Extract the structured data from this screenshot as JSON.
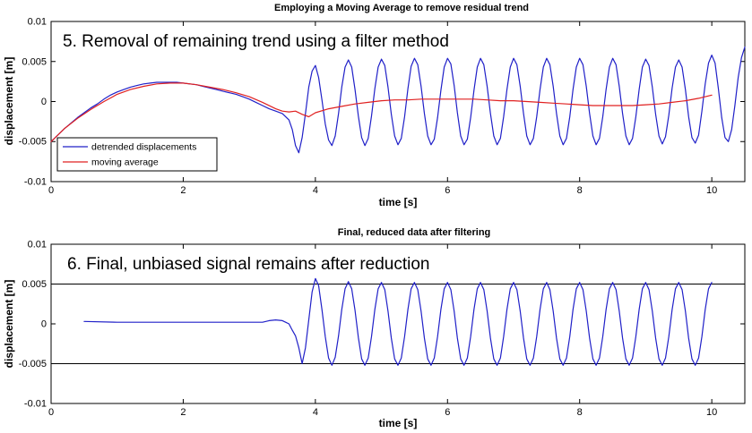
{
  "chart_data": [
    {
      "type": "line",
      "title": "Employing a Moving Average to remove residual trend",
      "annotation": "5. Removal of remaining trend using a filter method",
      "xlabel": "time [s]",
      "ylabel": "displacement [m]",
      "xlim": [
        0,
        10.5
      ],
      "ylim": [
        -0.01,
        0.01
      ],
      "xticks": [
        "0",
        "2",
        "4",
        "6",
        "8",
        "10"
      ],
      "yticks": [
        "-0.01",
        "-0.005",
        "0",
        "0.005",
        "0.01"
      ],
      "grid": false,
      "legend_position": "bottom-left",
      "series": [
        {
          "name": "detrended displacements",
          "color": "#2020c8",
          "x": [
            0,
            0.1,
            0.2,
            0.3,
            0.4,
            0.5,
            0.6,
            0.7,
            0.8,
            0.9,
            1.0,
            1.1,
            1.2,
            1.3,
            1.4,
            1.5,
            1.6,
            1.7,
            1.8,
            1.9,
            2.0,
            2.1,
            2.2,
            2.3,
            2.4,
            2.5,
            2.6,
            2.7,
            2.8,
            2.9,
            3.0,
            3.1,
            3.2,
            3.3,
            3.4,
            3.5,
            3.6,
            3.65,
            3.7,
            3.75,
            3.8,
            3.85,
            3.9,
            3.95,
            4.0,
            4.05,
            4.1,
            4.15,
            4.2,
            4.25,
            4.3,
            4.35,
            4.4,
            4.45,
            4.5,
            4.55,
            4.6,
            4.65,
            4.7,
            4.75,
            4.8,
            4.85,
            4.9,
            4.95,
            5.0,
            5.05,
            5.1,
            5.15,
            5.2,
            5.25,
            5.3,
            5.35,
            5.4,
            5.45,
            5.5,
            5.55,
            5.6,
            5.65,
            5.7,
            5.75,
            5.8,
            5.85,
            5.9,
            5.95,
            6.0,
            6.05,
            6.1,
            6.15,
            6.2,
            6.25,
            6.3,
            6.35,
            6.4,
            6.45,
            6.5,
            6.55,
            6.6,
            6.65,
            6.7,
            6.75,
            6.8,
            6.85,
            6.9,
            6.95,
            7.0,
            7.05,
            7.1,
            7.15,
            7.2,
            7.25,
            7.3,
            7.35,
            7.4,
            7.45,
            7.5,
            7.55,
            7.6,
            7.65,
            7.7,
            7.75,
            7.8,
            7.85,
            7.9,
            7.95,
            8.0,
            8.05,
            8.1,
            8.15,
            8.2,
            8.25,
            8.3,
            8.35,
            8.4,
            8.45,
            8.5,
            8.55,
            8.6,
            8.65,
            8.7,
            8.75,
            8.8,
            8.85,
            8.9,
            8.95,
            9.0,
            9.05,
            9.1,
            9.15,
            9.2,
            9.25,
            9.3,
            9.35,
            9.4,
            9.45,
            9.5,
            9.55,
            9.6,
            9.65,
            9.7,
            9.75,
            9.8,
            9.85,
            9.9,
            9.95,
            10.0,
            10.05,
            10.1,
            10.15,
            10.2,
            10.25,
            10.3,
            10.35,
            10.4,
            10.45,
            10.5
          ],
          "y": [
            -0.005,
            -0.0042,
            -0.0034,
            -0.0027,
            -0.002,
            -0.0014,
            -0.0008,
            -0.0003,
            0.0003,
            0.0008,
            0.0012,
            0.0015,
            0.0018,
            0.002,
            0.0022,
            0.0023,
            0.0024,
            0.0024,
            0.0024,
            0.0024,
            0.0023,
            0.0022,
            0.0021,
            0.0019,
            0.0017,
            0.0015,
            0.0013,
            0.0011,
            0.0009,
            0.0006,
            0.0003,
            -0.0001,
            -0.0005,
            -0.0009,
            -0.0012,
            -0.0015,
            -0.0023,
            -0.0035,
            -0.0055,
            -0.0064,
            -0.0045,
            -0.0015,
            0.0018,
            0.0038,
            0.0045,
            0.003,
            0.0002,
            -0.0028,
            -0.0048,
            -0.0055,
            -0.0043,
            -0.0015,
            0.0018,
            0.0043,
            0.0052,
            0.0043,
            0.0015,
            -0.0018,
            -0.0045,
            -0.0055,
            -0.0046,
            -0.0018,
            0.0016,
            0.0043,
            0.0053,
            0.0045,
            0.0018,
            -0.0016,
            -0.0043,
            -0.0054,
            -0.0046,
            -0.0019,
            0.0016,
            0.0044,
            0.0054,
            0.0046,
            0.0019,
            -0.0015,
            -0.0043,
            -0.0054,
            -0.0047,
            -0.002,
            0.0014,
            0.0043,
            0.0054,
            0.0047,
            0.002,
            -0.0014,
            -0.0043,
            -0.0054,
            -0.0047,
            -0.002,
            0.0014,
            0.0043,
            0.0054,
            0.0046,
            0.0019,
            -0.0015,
            -0.0043,
            -0.0054,
            -0.0046,
            -0.0019,
            0.0015,
            0.0043,
            0.0054,
            0.0046,
            0.0019,
            -0.0015,
            -0.0043,
            -0.0054,
            -0.0046,
            -0.0019,
            0.0015,
            0.0043,
            0.0054,
            0.0046,
            0.0019,
            -0.0015,
            -0.0043,
            -0.0054,
            -0.0046,
            -0.0019,
            0.0015,
            0.0043,
            0.0054,
            0.0046,
            0.0019,
            -0.0015,
            -0.0043,
            -0.0054,
            -0.0046,
            -0.0019,
            0.0015,
            0.0043,
            0.0054,
            0.0046,
            0.0019,
            -0.0015,
            -0.0043,
            -0.0054,
            -0.0046,
            -0.0019,
            0.0015,
            0.0043,
            0.0053,
            0.0045,
            0.0018,
            -0.0016,
            -0.0043,
            -0.0053,
            -0.0044,
            -0.0017,
            0.0017,
            0.0043,
            0.0052,
            0.0043,
            0.0015,
            -0.0019,
            -0.0045,
            -0.0052,
            -0.0042,
            -0.0012,
            0.0022,
            0.0048,
            0.0058,
            0.0048,
            0.0016,
            -0.002,
            -0.0045,
            -0.005,
            -0.0035,
            -0.0005,
            0.003,
            0.0055,
            0.0068
          ]
        },
        {
          "name": "moving average",
          "color": "#e02020",
          "x": [
            0,
            0.2,
            0.4,
            0.6,
            0.8,
            1.0,
            1.2,
            1.4,
            1.6,
            1.8,
            2.0,
            2.2,
            2.4,
            2.6,
            2.8,
            3.0,
            3.2,
            3.4,
            3.5,
            3.6,
            3.7,
            3.8,
            3.9,
            4.0,
            4.2,
            4.4,
            4.6,
            4.8,
            5.0,
            5.2,
            5.4,
            5.6,
            5.8,
            6.0,
            6.2,
            6.4,
            6.6,
            6.8,
            7.0,
            7.2,
            7.4,
            7.6,
            7.8,
            8.0,
            8.2,
            8.4,
            8.6,
            8.8,
            9.0,
            9.2,
            9.4,
            9.6,
            9.8,
            10.0
          ],
          "y": [
            -0.005,
            -0.0034,
            -0.0021,
            -0.001,
            0,
            0.0009,
            0.0015,
            0.0019,
            0.0022,
            0.0023,
            0.0023,
            0.0021,
            0.0018,
            0.0015,
            0.0011,
            0.0006,
            -0.0001,
            -0.0009,
            -0.0012,
            -0.0013,
            -0.0012,
            -0.0016,
            -0.0019,
            -0.0014,
            -0.0009,
            -0.0006,
            -0.0003,
            -0.0001,
            0.0001,
            0.0002,
            0.0002,
            0.0003,
            0.0003,
            0.0003,
            0.0003,
            0.0003,
            0.0002,
            0.0001,
            0.0001,
            0,
            -0.0001,
            -0.0002,
            -0.0003,
            -0.0004,
            -0.0005,
            -0.0005,
            -0.0005,
            -0.0005,
            -0.0004,
            -0.0003,
            -0.0001,
            0.0001,
            0.0004,
            0.0008
          ]
        }
      ]
    },
    {
      "type": "line",
      "title": "Final, reduced data after filtering",
      "annotation": "6. Final, unbiased signal remains after reduction",
      "xlabel": "time [s]",
      "ylabel": "displacement [m]",
      "xlim": [
        0,
        10.5
      ],
      "ylim": [
        -0.01,
        0.01
      ],
      "xticks": [
        "0",
        "2",
        "4",
        "6",
        "8",
        "10"
      ],
      "yticks": [
        "-0.01",
        "-0.005",
        "0",
        "0.005",
        "0.01"
      ],
      "grid": false,
      "reference_lines_y": [
        0.005,
        -0.005
      ],
      "series": [
        {
          "color": "#2020c8",
          "x": [
            0.5,
            1.0,
            1.5,
            2.0,
            2.5,
            3.0,
            3.2,
            3.3,
            3.4,
            3.5,
            3.55,
            3.6,
            3.65,
            3.7,
            3.75,
            3.8,
            3.85,
            3.9,
            3.95,
            4.0,
            4.05,
            4.1,
            4.15,
            4.2,
            4.25,
            4.3,
            4.35,
            4.4,
            4.45,
            4.5,
            4.55,
            4.6,
            4.65,
            4.7,
            4.75,
            4.8,
            4.85,
            4.9,
            4.95,
            5.0,
            5.05,
            5.1,
            5.15,
            5.2,
            5.25,
            5.3,
            5.35,
            5.4,
            5.45,
            5.5,
            5.55,
            5.6,
            5.65,
            5.7,
            5.75,
            5.8,
            5.85,
            5.9,
            5.95,
            6.0,
            6.05,
            6.1,
            6.15,
            6.2,
            6.25,
            6.3,
            6.35,
            6.4,
            6.45,
            6.5,
            6.55,
            6.6,
            6.65,
            6.7,
            6.75,
            6.8,
            6.85,
            6.9,
            6.95,
            7.0,
            7.05,
            7.1,
            7.15,
            7.2,
            7.25,
            7.3,
            7.35,
            7.4,
            7.45,
            7.5,
            7.55,
            7.6,
            7.65,
            7.7,
            7.75,
            7.8,
            7.85,
            7.9,
            7.95,
            8.0,
            8.05,
            8.1,
            8.15,
            8.2,
            8.25,
            8.3,
            8.35,
            8.4,
            8.45,
            8.5,
            8.55,
            8.6,
            8.65,
            8.7,
            8.75,
            8.8,
            8.85,
            8.9,
            8.95,
            9.0,
            9.05,
            9.1,
            9.15,
            9.2,
            9.25,
            9.3,
            9.35,
            9.4,
            9.45,
            9.5,
            9.55,
            9.6,
            9.65,
            9.7,
            9.75,
            9.8,
            9.85,
            9.9,
            9.95,
            10.0
          ],
          "y": [
            0.0003,
            0.0002,
            0.0002,
            0.0002,
            0.0002,
            0.0002,
            0.0002,
            0.0004,
            0.0005,
            0.0004,
            0.0002,
            0,
            -0.0008,
            -0.0015,
            -0.003,
            -0.005,
            -0.003,
            0.0005,
            0.004,
            0.0057,
            0.0048,
            0.0018,
            -0.0016,
            -0.0043,
            -0.0052,
            -0.0042,
            -0.0015,
            0.0018,
            0.0044,
            0.0053,
            0.0044,
            0.0017,
            -0.0017,
            -0.0044,
            -0.0052,
            -0.0043,
            -0.0016,
            0.0018,
            0.0044,
            0.0052,
            0.0043,
            0.0016,
            -0.0018,
            -0.0044,
            -0.0052,
            -0.0043,
            -0.0016,
            0.0018,
            0.0044,
            0.0052,
            0.0043,
            0.0016,
            -0.0018,
            -0.0044,
            -0.0052,
            -0.0043,
            -0.0016,
            0.0018,
            0.0044,
            0.0052,
            0.0043,
            0.0016,
            -0.0018,
            -0.0044,
            -0.0052,
            -0.0043,
            -0.0016,
            0.0018,
            0.0044,
            0.0052,
            0.0043,
            0.0016,
            -0.0018,
            -0.0044,
            -0.0052,
            -0.0043,
            -0.0016,
            0.0018,
            0.0044,
            0.0052,
            0.0043,
            0.0016,
            -0.0018,
            -0.0044,
            -0.0052,
            -0.0043,
            -0.0016,
            0.0018,
            0.0044,
            0.0052,
            0.0043,
            0.0016,
            -0.0018,
            -0.0044,
            -0.0052,
            -0.0043,
            -0.0016,
            0.0018,
            0.0044,
            0.0052,
            0.0043,
            0.0016,
            -0.0018,
            -0.0044,
            -0.0052,
            -0.0043,
            -0.0016,
            0.0018,
            0.0044,
            0.0052,
            0.0043,
            0.0016,
            -0.0018,
            -0.0044,
            -0.0052,
            -0.0043,
            -0.0016,
            0.0018,
            0.0044,
            0.0052,
            0.0043,
            0.0016,
            -0.0018,
            -0.0044,
            -0.0052,
            -0.0043,
            -0.0016,
            0.0018,
            0.0044,
            0.0052,
            0.0043,
            0.0016,
            -0.0018,
            -0.0044,
            -0.0052,
            -0.0043,
            -0.0016,
            0.0018,
            0.0044,
            0.0052
          ]
        }
      ]
    }
  ]
}
